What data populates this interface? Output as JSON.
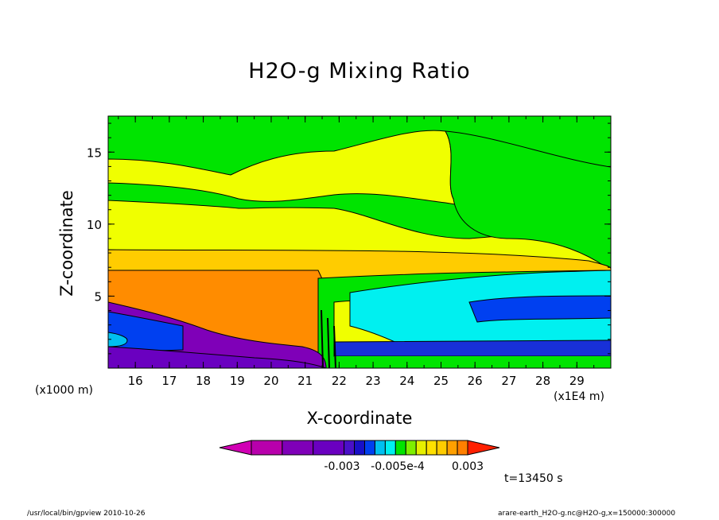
{
  "chart_data": {
    "type": "heatmap",
    "title": "H2O-g Mixing Ratio",
    "xlabel": "X-coordinate",
    "ylabel": "Z-coordinate",
    "x_unit": "(x1E4 m)",
    "y_unit": "(x1000 m)",
    "xlim": [
      15.2,
      30.0
    ],
    "ylim": [
      0.0,
      17.5
    ],
    "x_ticks": [
      "16",
      "17",
      "18",
      "19",
      "20",
      "21",
      "22",
      "23",
      "24",
      "25",
      "26",
      "27",
      "28",
      "29"
    ],
    "y_ticks": [
      "5",
      "10",
      "15"
    ],
    "colorbar": {
      "colors": [
        "#d100b4",
        "#b800ac",
        "#7f00b8",
        "#6a00c0",
        "#4a10c8",
        "#1810c8",
        "#0040f0",
        "#00c0f0",
        "#00f0f0",
        "#00e400",
        "#7ef000",
        "#e6f000",
        "#ffe000",
        "#ffcc00",
        "#ffa000",
        "#ff8000",
        "#ff2000"
      ],
      "labels": [
        "-0.003",
        "-0.005e-4",
        "0.003"
      ]
    },
    "regions": [
      {
        "name": "upper band",
        "color": "#00e400",
        "z_range": [
          14.5,
          17.5
        ]
      },
      {
        "name": "yellow layer",
        "color": "#f0ff00",
        "z_range": [
          8.2,
          15.0
        ]
      },
      {
        "name": "orange mid layer",
        "color": "#ffa000",
        "z_range": [
          7.0,
          8.2
        ]
      },
      {
        "name": "dark orange west",
        "color": "#ff8000",
        "x_range": [
          15.2,
          21.5
        ],
        "z_range": [
          2.0,
          7.0
        ]
      },
      {
        "name": "cyan east",
        "color": "#00f0f0",
        "x_range": [
          22.0,
          30.0
        ],
        "z_range": [
          1.5,
          6.5
        ]
      },
      {
        "name": "blue lower east",
        "color": "#0040f0",
        "x_range": [
          22.0,
          30.0
        ],
        "z_range": [
          0.5,
          1.8
        ]
      },
      {
        "name": "purple surface west",
        "color": "#7f00b8",
        "x_range": [
          15.2,
          21.0
        ],
        "z_range": [
          0.0,
          2.5
        ]
      }
    ]
  },
  "time_label": "t=13450 s",
  "footer_left": "/usr/local/bin/gpview  2010-10-26",
  "footer_right": "arare-earth_H2O-g.nc@H2O-g,x=150000:300000"
}
